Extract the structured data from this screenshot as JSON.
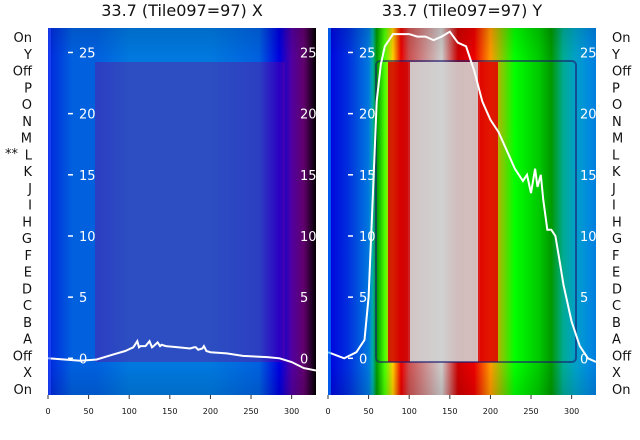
{
  "chart_data": [
    {
      "type": "heatmap",
      "title": "33.7 (Tile097=97) X",
      "row_labels": [
        "On",
        "Y",
        "Off",
        "P",
        "O",
        "N",
        "M",
        "L",
        "K",
        "J",
        "I",
        "H",
        "G",
        "F",
        "E",
        "D",
        "C",
        "B",
        "A",
        "Off",
        "X",
        "On"
      ],
      "row_marker": {
        "row": "L",
        "text": "**"
      },
      "xticks": [
        0,
        50,
        100,
        150,
        200,
        250,
        300
      ],
      "xlim": [
        0,
        330
      ],
      "yticks": [
        0,
        5,
        10,
        15,
        20,
        25
      ],
      "ylim": [
        -3,
        27
      ],
      "colormap": "nipy_spectral",
      "heat_profile": [
        [
          0,
          0.2
        ],
        [
          5,
          0.22
        ],
        [
          30,
          0.24
        ],
        [
          60,
          0.24
        ],
        [
          100,
          0.25
        ],
        [
          200,
          0.25
        ],
        [
          260,
          0.24
        ],
        [
          285,
          0.2
        ],
        [
          300,
          0.12
        ],
        [
          315,
          0.04
        ],
        [
          330,
          0.0
        ]
      ],
      "line": {
        "color": "#ffffff",
        "x": [
          0,
          20,
          40,
          60,
          80,
          95,
          105,
          110,
          112,
          114,
          120,
          125,
          128,
          130,
          135,
          138,
          140,
          145,
          160,
          175,
          180,
          182,
          185,
          190,
          192,
          195,
          200,
          220,
          240,
          270,
          285,
          300,
          315,
          330
        ],
        "y": [
          0.0,
          -0.1,
          -0.2,
          -0.1,
          0.3,
          0.6,
          0.9,
          1.4,
          0.9,
          1.0,
          1.0,
          1.4,
          0.9,
          1.0,
          1.3,
          1.0,
          1.1,
          1.0,
          0.9,
          0.8,
          0.9,
          0.9,
          0.7,
          0.8,
          1.0,
          0.6,
          0.5,
          0.4,
          0.2,
          0.1,
          0.0,
          -0.3,
          -0.8,
          -1.0
        ]
      }
    },
    {
      "type": "heatmap",
      "title": "33.7 (Tile097=97) Y",
      "row_labels": [
        "On",
        "Y",
        "Off",
        "P",
        "O",
        "N",
        "M",
        "L",
        "K",
        "J",
        "I",
        "H",
        "G",
        "F",
        "E",
        "D",
        "C",
        "B",
        "A",
        "Off",
        "X",
        "On"
      ],
      "xticks": [
        0,
        50,
        100,
        150,
        200,
        250,
        300
      ],
      "xlim": [
        0,
        330
      ],
      "yticks": [
        0,
        5,
        10,
        15,
        20,
        25
      ],
      "ylim": [
        -3,
        27
      ],
      "colormap": "nipy_spectral",
      "heat_profile": [
        [
          0,
          0.2
        ],
        [
          25,
          0.22
        ],
        [
          50,
          0.25
        ],
        [
          55,
          0.35
        ],
        [
          60,
          0.45
        ],
        [
          70,
          0.62
        ],
        [
          80,
          0.75
        ],
        [
          90,
          0.88
        ],
        [
          100,
          0.97
        ],
        [
          140,
          1.0
        ],
        [
          160,
          0.95
        ],
        [
          180,
          0.88
        ],
        [
          200,
          0.8
        ],
        [
          230,
          0.6
        ],
        [
          260,
          0.52
        ],
        [
          275,
          0.45
        ],
        [
          290,
          0.38
        ],
        [
          305,
          0.32
        ],
        [
          320,
          0.28
        ],
        [
          330,
          0.26
        ]
      ],
      "line": {
        "color": "#ffffff",
        "x": [
          0,
          20,
          35,
          45,
          50,
          55,
          60,
          65,
          70,
          80,
          90,
          100,
          110,
          120,
          130,
          140,
          150,
          160,
          170,
          180,
          190,
          200,
          210,
          220,
          230,
          240,
          245,
          250,
          255,
          258,
          262,
          265,
          270,
          275,
          280,
          285,
          290,
          300,
          310,
          320,
          330
        ],
        "y": [
          0.5,
          0.0,
          0.5,
          1.5,
          5.0,
          13.0,
          21.0,
          24.0,
          25.5,
          26.5,
          26.5,
          26.5,
          26.3,
          26.3,
          26.0,
          26.3,
          26.7,
          25.8,
          25.5,
          23.5,
          21.0,
          19.5,
          18.5,
          17.0,
          15.5,
          14.5,
          15.0,
          13.5,
          15.5,
          14.0,
          15.0,
          13.0,
          10.5,
          10.5,
          10.0,
          8.0,
          6.0,
          3.0,
          1.0,
          0.0,
          -0.3
        ]
      }
    }
  ]
}
